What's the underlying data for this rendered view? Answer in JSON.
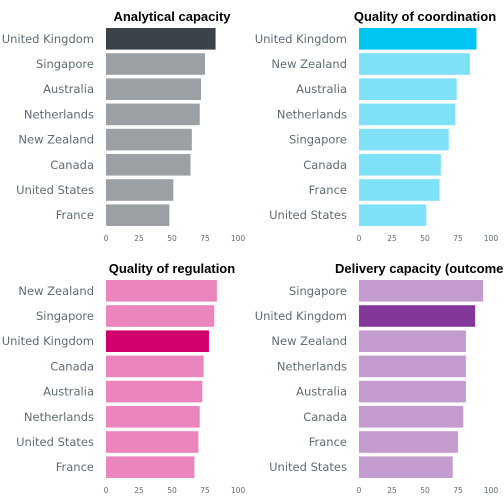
{
  "chart_data": [
    {
      "type": "bar",
      "orientation": "horizontal",
      "title": "Analytical capacity",
      "categories": [
        "United Kingdom",
        "Singapore",
        "Australia",
        "Netherlands",
        "New Zealand",
        "Canada",
        "United States",
        "France"
      ],
      "values": [
        83,
        75,
        72,
        71,
        65,
        64,
        51,
        48
      ],
      "highlight": "United Kingdom",
      "bar_color": "#9aa0a4",
      "highlight_color": "#3b4249",
      "xlim": [
        0,
        100
      ],
      "xticks": [
        "0",
        "25",
        "50",
        "75",
        "100"
      ]
    },
    {
      "type": "bar",
      "orientation": "horizontal",
      "title": "Quality of coordination",
      "categories": [
        "United Kingdom",
        "New Zealand",
        "Australia",
        "Netherlands",
        "Singapore",
        "Canada",
        "France",
        "United States"
      ],
      "values": [
        89,
        84,
        74,
        73,
        68,
        62,
        61,
        51
      ],
      "highlight": "United Kingdom",
      "bar_color": "#7fe1f7",
      "highlight_color": "#00c5f2",
      "xlim": [
        0,
        100
      ],
      "xticks": [
        "0",
        "25",
        "50",
        "75",
        "100"
      ]
    },
    {
      "type": "bar",
      "orientation": "horizontal",
      "title": "Quality of regulation",
      "categories": [
        "New Zealand",
        "Singapore",
        "United Kingdom",
        "Canada",
        "Australia",
        "Netherlands",
        "United States",
        "France"
      ],
      "values": [
        84,
        82,
        78,
        74,
        73,
        71,
        70,
        67
      ],
      "highlight": "United Kingdom",
      "bar_color": "#ea85be",
      "highlight_color": "#d1006f",
      "xlim": [
        0,
        100
      ],
      "xticks": [
        "0",
        "25",
        "50",
        "75",
        "100"
      ]
    },
    {
      "type": "bar",
      "orientation": "horizontal",
      "title": "Delivery capacity (outcomes)",
      "categories": [
        "Singapore",
        "United Kingdom",
        "New Zealand",
        "Netherlands",
        "Australia",
        "Canada",
        "France",
        "United States"
      ],
      "values": [
        94,
        88,
        81,
        81,
        81,
        79,
        75,
        71
      ],
      "highlight": "United Kingdom",
      "bar_color": "#c49bcf",
      "highlight_color": "#83379a",
      "xlim": [
        0,
        100
      ],
      "xticks": [
        "0",
        "25",
        "50",
        "75",
        "100"
      ]
    }
  ]
}
